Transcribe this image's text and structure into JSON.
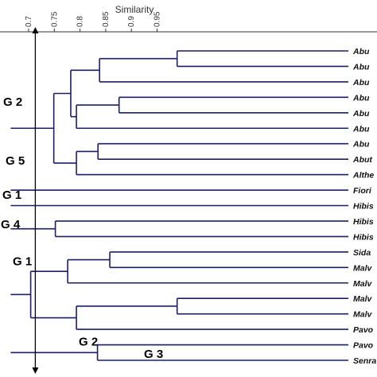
{
  "chart_data": {
    "type": "dendrogram",
    "title": "",
    "xlabel": "Similarity",
    "x_ticks": [
      {
        "value": 0.7,
        "label": "0.7"
      },
      {
        "value": 0.75,
        "label": "0.75"
      },
      {
        "value": 0.8,
        "label": "0.8"
      },
      {
        "value": 0.85,
        "label": "0.85"
      },
      {
        "value": 0.9,
        "label": "0.9"
      },
      {
        "value": 0.95,
        "label": "0.95"
      }
    ],
    "leaves": [
      "Abu",
      "Abu",
      "Abu",
      "Abu",
      "Abu",
      "Abu",
      "Abu",
      "Abut",
      "Althe",
      "Fiori",
      "Hibis",
      "Hibis",
      "Hibis",
      "Sida",
      "Malv",
      "Malv",
      "Malv",
      "Malv",
      "Pavo",
      "Pavo",
      "Senra"
    ],
    "merges": [
      {
        "children": [
          0,
          1
        ],
        "similarity": 0.989
      },
      {
        "children": [
          "m0",
          2
        ],
        "similarity": 0.838
      },
      {
        "children": [
          3,
          4
        ],
        "similarity": 0.876
      },
      {
        "children": [
          "m2",
          5
        ],
        "similarity": 0.793
      },
      {
        "children": [
          "m1",
          "m3"
        ],
        "similarity": 0.782
      },
      {
        "children": [
          6,
          7
        ],
        "similarity": 0.835
      },
      {
        "children": [
          "m5",
          8
        ],
        "similarity": 0.793
      },
      {
        "children": [
          "m4",
          "m6"
        ],
        "similarity": 0.749
      },
      {
        "children": [
          11,
          12
        ],
        "similarity": 0.752
      },
      {
        "children": [
          13,
          14
        ],
        "similarity": 0.858
      },
      {
        "children": [
          "m9",
          15
        ],
        "similarity": 0.776
      },
      {
        "children": [
          16,
          17
        ],
        "similarity": 0.989
      },
      {
        "children": [
          "m11",
          18
        ],
        "similarity": 0.793
      },
      {
        "children": [
          "m10",
          "m12"
        ],
        "similarity": 0.704
      },
      {
        "children": [
          19,
          20
        ],
        "similarity": 0.834
      }
    ],
    "group_labels": [
      {
        "text": "G 2",
        "row": 3.3
      },
      {
        "text": "G 5",
        "row": 7.1
      },
      {
        "text": "G 1",
        "row": 9.3
      },
      {
        "text": "G 4",
        "row": 11.2
      },
      {
        "text": "G 1",
        "row": 13.6
      },
      {
        "text": "G 2",
        "row": 18.8
      },
      {
        "text": "G 3",
        "row": 19.6
      }
    ],
    "cut_line_similarity": 0.713,
    "x_range": [
      0.665,
      1.0
    ],
    "colors": {
      "branch": "#1a1f66",
      "axis": "#333333",
      "cut_line": "#000000"
    }
  }
}
